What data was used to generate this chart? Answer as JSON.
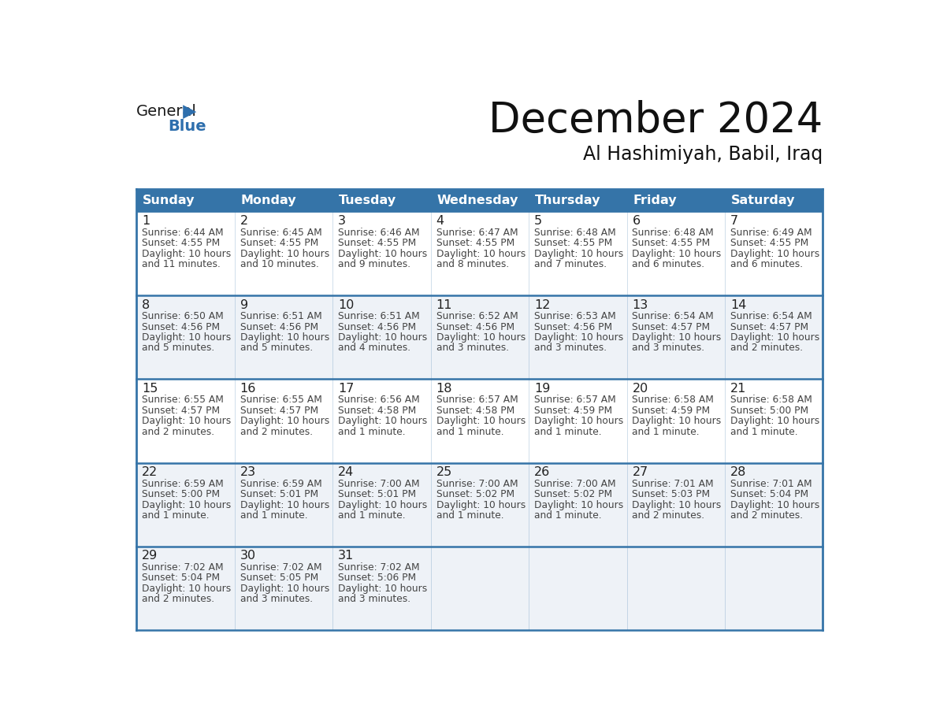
{
  "title": "December 2024",
  "subtitle": "Al Hashimiyah, Babil, Iraq",
  "days_of_week": [
    "Sunday",
    "Monday",
    "Tuesday",
    "Wednesday",
    "Thursday",
    "Friday",
    "Saturday"
  ],
  "header_bg_color": "#3574a8",
  "header_text_color": "#ffffff",
  "row_bg_colors": [
    "#ffffff",
    "#eef2f7",
    "#ffffff",
    "#eef2f7",
    "#eef2f7"
  ],
  "border_color": "#3574a8",
  "day_number_color": "#222222",
  "cell_text_color": "#444444",
  "title_color": "#111111",
  "subtitle_color": "#111111",
  "logo_general_color": "#1a1a1a",
  "logo_blue_color": "#2e6fad",
  "weeks": [
    {
      "days": [
        {
          "date": 1,
          "sunrise": "6:44 AM",
          "sunset": "4:55 PM",
          "daylight_line1": "Daylight: 10 hours",
          "daylight_line2": "and 11 minutes."
        },
        {
          "date": 2,
          "sunrise": "6:45 AM",
          "sunset": "4:55 PM",
          "daylight_line1": "Daylight: 10 hours",
          "daylight_line2": "and 10 minutes."
        },
        {
          "date": 3,
          "sunrise": "6:46 AM",
          "sunset": "4:55 PM",
          "daylight_line1": "Daylight: 10 hours",
          "daylight_line2": "and 9 minutes."
        },
        {
          "date": 4,
          "sunrise": "6:47 AM",
          "sunset": "4:55 PM",
          "daylight_line1": "Daylight: 10 hours",
          "daylight_line2": "and 8 minutes."
        },
        {
          "date": 5,
          "sunrise": "6:48 AM",
          "sunset": "4:55 PM",
          "daylight_line1": "Daylight: 10 hours",
          "daylight_line2": "and 7 minutes."
        },
        {
          "date": 6,
          "sunrise": "6:48 AM",
          "sunset": "4:55 PM",
          "daylight_line1": "Daylight: 10 hours",
          "daylight_line2": "and 6 minutes."
        },
        {
          "date": 7,
          "sunrise": "6:49 AM",
          "sunset": "4:55 PM",
          "daylight_line1": "Daylight: 10 hours",
          "daylight_line2": "and 6 minutes."
        }
      ]
    },
    {
      "days": [
        {
          "date": 8,
          "sunrise": "6:50 AM",
          "sunset": "4:56 PM",
          "daylight_line1": "Daylight: 10 hours",
          "daylight_line2": "and 5 minutes."
        },
        {
          "date": 9,
          "sunrise": "6:51 AM",
          "sunset": "4:56 PM",
          "daylight_line1": "Daylight: 10 hours",
          "daylight_line2": "and 5 minutes."
        },
        {
          "date": 10,
          "sunrise": "6:51 AM",
          "sunset": "4:56 PM",
          "daylight_line1": "Daylight: 10 hours",
          "daylight_line2": "and 4 minutes."
        },
        {
          "date": 11,
          "sunrise": "6:52 AM",
          "sunset": "4:56 PM",
          "daylight_line1": "Daylight: 10 hours",
          "daylight_line2": "and 3 minutes."
        },
        {
          "date": 12,
          "sunrise": "6:53 AM",
          "sunset": "4:56 PM",
          "daylight_line1": "Daylight: 10 hours",
          "daylight_line2": "and 3 minutes."
        },
        {
          "date": 13,
          "sunrise": "6:54 AM",
          "sunset": "4:57 PM",
          "daylight_line1": "Daylight: 10 hours",
          "daylight_line2": "and 3 minutes."
        },
        {
          "date": 14,
          "sunrise": "6:54 AM",
          "sunset": "4:57 PM",
          "daylight_line1": "Daylight: 10 hours",
          "daylight_line2": "and 2 minutes."
        }
      ]
    },
    {
      "days": [
        {
          "date": 15,
          "sunrise": "6:55 AM",
          "sunset": "4:57 PM",
          "daylight_line1": "Daylight: 10 hours",
          "daylight_line2": "and 2 minutes."
        },
        {
          "date": 16,
          "sunrise": "6:55 AM",
          "sunset": "4:57 PM",
          "daylight_line1": "Daylight: 10 hours",
          "daylight_line2": "and 2 minutes."
        },
        {
          "date": 17,
          "sunrise": "6:56 AM",
          "sunset": "4:58 PM",
          "daylight_line1": "Daylight: 10 hours",
          "daylight_line2": "and 1 minute."
        },
        {
          "date": 18,
          "sunrise": "6:57 AM",
          "sunset": "4:58 PM",
          "daylight_line1": "Daylight: 10 hours",
          "daylight_line2": "and 1 minute."
        },
        {
          "date": 19,
          "sunrise": "6:57 AM",
          "sunset": "4:59 PM",
          "daylight_line1": "Daylight: 10 hours",
          "daylight_line2": "and 1 minute."
        },
        {
          "date": 20,
          "sunrise": "6:58 AM",
          "sunset": "4:59 PM",
          "daylight_line1": "Daylight: 10 hours",
          "daylight_line2": "and 1 minute."
        },
        {
          "date": 21,
          "sunrise": "6:58 AM",
          "sunset": "5:00 PM",
          "daylight_line1": "Daylight: 10 hours",
          "daylight_line2": "and 1 minute."
        }
      ]
    },
    {
      "days": [
        {
          "date": 22,
          "sunrise": "6:59 AM",
          "sunset": "5:00 PM",
          "daylight_line1": "Daylight: 10 hours",
          "daylight_line2": "and 1 minute."
        },
        {
          "date": 23,
          "sunrise": "6:59 AM",
          "sunset": "5:01 PM",
          "daylight_line1": "Daylight: 10 hours",
          "daylight_line2": "and 1 minute."
        },
        {
          "date": 24,
          "sunrise": "7:00 AM",
          "sunset": "5:01 PM",
          "daylight_line1": "Daylight: 10 hours",
          "daylight_line2": "and 1 minute."
        },
        {
          "date": 25,
          "sunrise": "7:00 AM",
          "sunset": "5:02 PM",
          "daylight_line1": "Daylight: 10 hours",
          "daylight_line2": "and 1 minute."
        },
        {
          "date": 26,
          "sunrise": "7:00 AM",
          "sunset": "5:02 PM",
          "daylight_line1": "Daylight: 10 hours",
          "daylight_line2": "and 1 minute."
        },
        {
          "date": 27,
          "sunrise": "7:01 AM",
          "sunset": "5:03 PM",
          "daylight_line1": "Daylight: 10 hours",
          "daylight_line2": "and 2 minutes."
        },
        {
          "date": 28,
          "sunrise": "7:01 AM",
          "sunset": "5:04 PM",
          "daylight_line1": "Daylight: 10 hours",
          "daylight_line2": "and 2 minutes."
        }
      ]
    },
    {
      "days": [
        {
          "date": 29,
          "sunrise": "7:02 AM",
          "sunset": "5:04 PM",
          "daylight_line1": "Daylight: 10 hours",
          "daylight_line2": "and 2 minutes."
        },
        {
          "date": 30,
          "sunrise": "7:02 AM",
          "sunset": "5:05 PM",
          "daylight_line1": "Daylight: 10 hours",
          "daylight_line2": "and 3 minutes."
        },
        {
          "date": 31,
          "sunrise": "7:02 AM",
          "sunset": "5:06 PM",
          "daylight_line1": "Daylight: 10 hours",
          "daylight_line2": "and 3 minutes."
        },
        null,
        null,
        null,
        null
      ]
    }
  ]
}
